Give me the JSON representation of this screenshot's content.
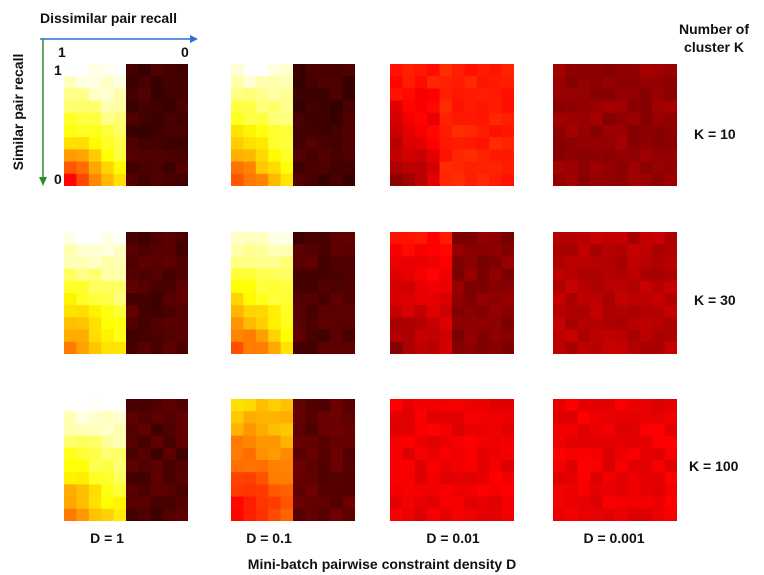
{
  "chart_data": {
    "type": "heatmap",
    "title": "",
    "xlabel": "Mini-batch pairwise constraint density D",
    "x_axis_title": "Dissimilar pair recall",
    "y_axis_title": "Similar pair recall",
    "x_ticks": [
      "1",
      "0"
    ],
    "y_ticks": [
      "1",
      "0"
    ],
    "row_header": "Number of cluster K",
    "rows": [
      "K = 10",
      "K = 30",
      "K = 100"
    ],
    "columns": [
      "D = 1",
      "D = 0.1",
      "D = 0.01",
      "D = 0.001"
    ],
    "grid_size": 10,
    "colormap": "hot",
    "colors": {
      "x_arrow": "#2f6fd6",
      "y_arrow": "#2e8b2e"
    },
    "panels": [
      [
        {
          "boundary": 0.5,
          "bright": 1.0,
          "right_level": 0.1,
          "corner_dark": 0.35
        },
        {
          "boundary": 0.5,
          "bright": 0.98,
          "right_level": 0.1,
          "corner_dark": 0.15
        },
        {
          "boundary": 0.42,
          "bright": 0.42,
          "right_level": 0.42,
          "corner_dark": 0.0
        },
        {
          "boundary": 0.0,
          "bright": 0.22,
          "right_level": 0.22,
          "corner_dark": 0.0
        }
      ],
      [
        {
          "boundary": 0.5,
          "bright": 1.0,
          "right_level": 0.12,
          "corner_dark": 0.0
        },
        {
          "boundary": 0.5,
          "bright": 0.95,
          "right_level": 0.12,
          "corner_dark": 0.1
        },
        {
          "boundary": 0.5,
          "bright": 0.4,
          "right_level": 0.2,
          "corner_dark": 0.0
        },
        {
          "boundary": 0.0,
          "bright": 0.27,
          "right_level": 0.27,
          "corner_dark": 0.0
        }
      ],
      [
        {
          "boundary": 0.5,
          "bright": 1.0,
          "right_level": 0.12,
          "corner_dark": 0.0
        },
        {
          "boundary": 0.5,
          "bright": 0.68,
          "right_level": 0.14,
          "corner_dark": 0.0
        },
        {
          "boundary": 0.0,
          "bright": 0.35,
          "right_level": 0.35,
          "corner_dark": 0.0
        },
        {
          "boundary": 0.0,
          "bright": 0.35,
          "right_level": 0.35,
          "corner_dark": 0.0
        }
      ]
    ]
  }
}
